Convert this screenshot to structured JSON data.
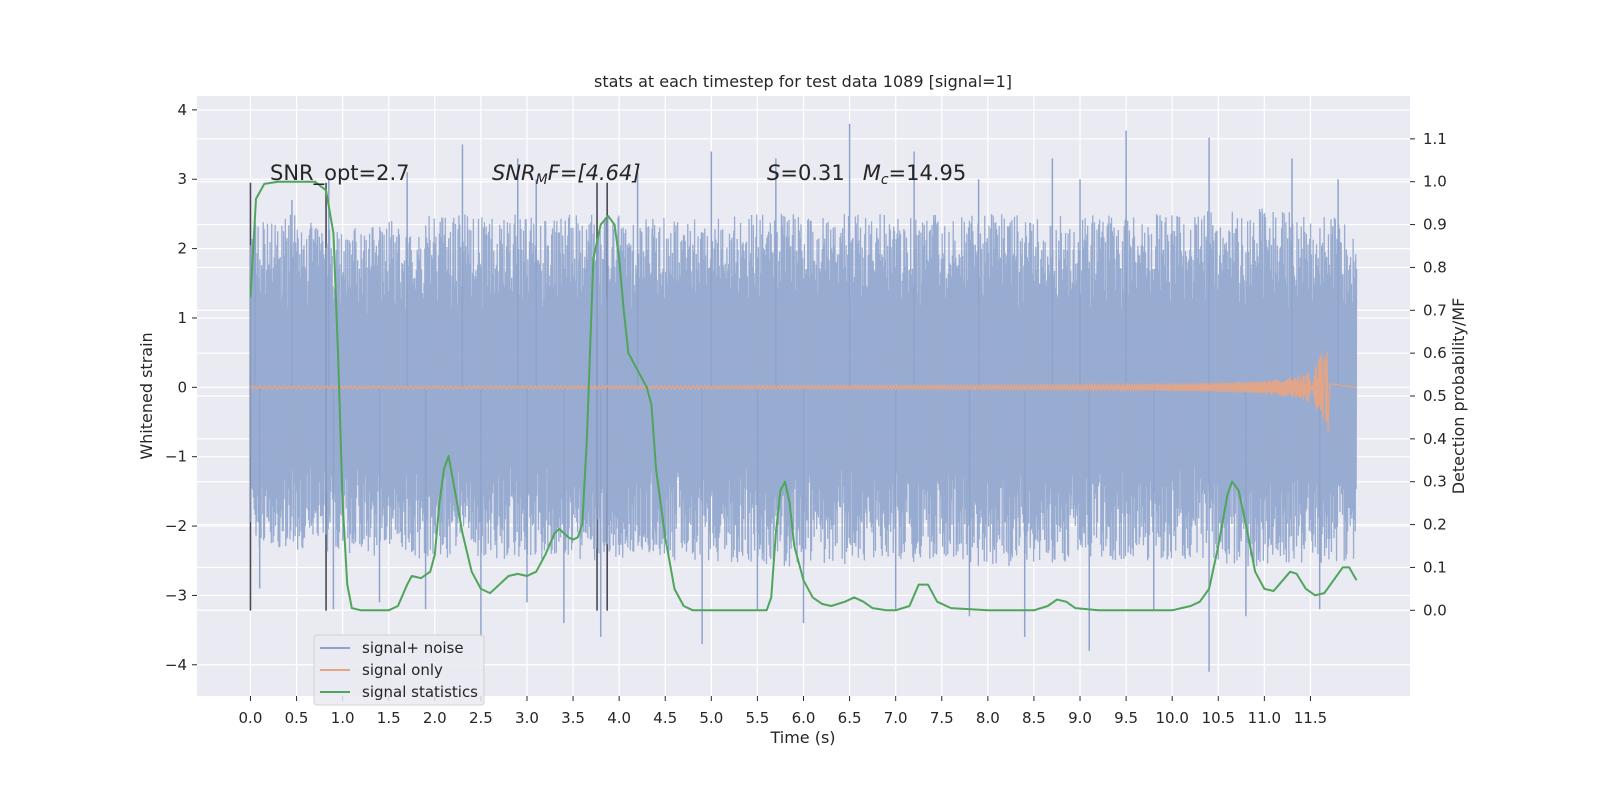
{
  "chart_data": {
    "type": "line",
    "title": "stats at each timestep for test data 1089 [signal=1]",
    "xlabel": "Time (s)",
    "ylabel": "Whitened strain",
    "y2label": "Detection probability/MF",
    "xlim": [
      -0.58,
      12.58
    ],
    "ylim": [
      -4.45,
      4.2
    ],
    "y2lim": [
      -0.2,
      1.2
    ],
    "grid": true,
    "legend": "lower-left",
    "x_ticks": [
      "0.0",
      "0.5",
      "1.0",
      "1.5",
      "2.0",
      "2.5",
      "3.0",
      "3.5",
      "4.0",
      "4.5",
      "5.0",
      "5.5",
      "6.0",
      "6.5",
      "7.0",
      "7.5",
      "8.0",
      "8.5",
      "9.0",
      "9.5",
      "10.0",
      "10.5",
      "11.0",
      "11.5"
    ],
    "y_ticks": [
      "−4",
      "−3",
      "−2",
      "−1",
      "0",
      "1",
      "2",
      "3",
      "4"
    ],
    "y2_ticks": [
      "0.0",
      "0.1",
      "0.2",
      "0.3",
      "0.4",
      "0.5",
      "0.6",
      "0.7",
      "0.8",
      "0.9",
      "1.0",
      "1.1"
    ],
    "annotations": {
      "snr_opt": "SNR_opt=2.7",
      "snr_mf_main": "SNR",
      "snr_mf_sub": "M",
      "snr_mf_rest": "F=[4.64]",
      "s_var": "S",
      "s_val": "=0.31",
      "mc_var": "M",
      "mc_sub": "c",
      "mc_val": "=14.95"
    },
    "vlines": [
      0.0,
      0.82,
      3.76,
      3.87
    ],
    "vline_range": [
      -3.22,
      2.95
    ],
    "series": [
      {
        "name": "signal+ noise",
        "color": "#8fa4cc",
        "t_range": [
          0.0,
          12.0
        ],
        "envelope_upper": [
          [
            0,
            2.4
          ],
          [
            0.5,
            2.5
          ],
          [
            1,
            2.3
          ],
          [
            2,
            2.5
          ],
          [
            3,
            2.5
          ],
          [
            4,
            2.5
          ],
          [
            5,
            2.5
          ],
          [
            6,
            2.5
          ],
          [
            7,
            2.5
          ],
          [
            8,
            2.5
          ],
          [
            9,
            2.5
          ],
          [
            10,
            2.5
          ],
          [
            11,
            2.6
          ],
          [
            12,
            2.4
          ]
        ],
        "envelope_lower": [
          [
            0,
            -2.3
          ],
          [
            1,
            -2.4
          ],
          [
            2,
            -2.5
          ],
          [
            3,
            -2.5
          ],
          [
            4,
            -2.5
          ],
          [
            5,
            -2.5
          ],
          [
            6,
            -2.6
          ],
          [
            7,
            -2.5
          ],
          [
            8,
            -2.6
          ],
          [
            9,
            -2.5
          ],
          [
            10,
            -2.5
          ],
          [
            11,
            -2.6
          ],
          [
            12,
            -2.5
          ]
        ],
        "spikes_high": [
          [
            0.05,
            2.4
          ],
          [
            0.45,
            2.7
          ],
          [
            0.85,
            3.0
          ],
          [
            1.7,
            3.1
          ],
          [
            2.3,
            3.5
          ],
          [
            2.9,
            3.3
          ],
          [
            3.1,
            3.0
          ],
          [
            4.2,
            3.1
          ],
          [
            5.0,
            3.4
          ],
          [
            5.7,
            3.3
          ],
          [
            6.5,
            3.8
          ],
          [
            7.2,
            3.4
          ],
          [
            7.9,
            3.0
          ],
          [
            8.7,
            3.3
          ],
          [
            9.0,
            3.0
          ],
          [
            9.5,
            3.7
          ],
          [
            10.4,
            3.6
          ],
          [
            11.3,
            3.3
          ],
          [
            11.8,
            3.0
          ]
        ],
        "spikes_low": [
          [
            0.1,
            -2.9
          ],
          [
            0.9,
            -3.2
          ],
          [
            1.4,
            -3.1
          ],
          [
            1.9,
            -3.2
          ],
          [
            2.5,
            -3.6
          ],
          [
            3.0,
            -3.1
          ],
          [
            3.4,
            -3.4
          ],
          [
            3.8,
            -3.6
          ],
          [
            4.9,
            -3.7
          ],
          [
            5.5,
            -3.2
          ],
          [
            6.0,
            -3.4
          ],
          [
            7.0,
            -3.2
          ],
          [
            7.8,
            -3.3
          ],
          [
            8.4,
            -3.6
          ],
          [
            9.1,
            -3.8
          ],
          [
            9.8,
            -3.2
          ],
          [
            10.4,
            -4.1
          ],
          [
            10.8,
            -3.3
          ],
          [
            11.6,
            -3.2
          ]
        ]
      },
      {
        "name": "signal only",
        "color": "#e5a585",
        "t_range": [
          0.0,
          12.0
        ],
        "amplitude_start": 0.01,
        "merger_time": 11.68,
        "merger_peak": 0.52,
        "merger_trough": -0.66
      },
      {
        "name": "signal statistics",
        "color": "#4fa55b",
        "points": [
          [
            0.0,
            0.73
          ],
          [
            0.06,
            0.96
          ],
          [
            0.15,
            0.995
          ],
          [
            0.3,
            1.0
          ],
          [
            0.5,
            1.0
          ],
          [
            0.7,
            1.0
          ],
          [
            0.82,
            0.98
          ],
          [
            0.9,
            0.88
          ],
          [
            0.95,
            0.6
          ],
          [
            1.0,
            0.25
          ],
          [
            1.05,
            0.06
          ],
          [
            1.1,
            0.005
          ],
          [
            1.2,
            0.0
          ],
          [
            1.5,
            0.0
          ],
          [
            1.6,
            0.01
          ],
          [
            1.7,
            0.06
          ],
          [
            1.75,
            0.08
          ],
          [
            1.85,
            0.075
          ],
          [
            1.95,
            0.09
          ],
          [
            2.0,
            0.13
          ],
          [
            2.05,
            0.25
          ],
          [
            2.1,
            0.33
          ],
          [
            2.15,
            0.36
          ],
          [
            2.2,
            0.3
          ],
          [
            2.3,
            0.18
          ],
          [
            2.4,
            0.09
          ],
          [
            2.5,
            0.05
          ],
          [
            2.6,
            0.04
          ],
          [
            2.7,
            0.06
          ],
          [
            2.8,
            0.08
          ],
          [
            2.9,
            0.085
          ],
          [
            3.0,
            0.08
          ],
          [
            3.1,
            0.09
          ],
          [
            3.2,
            0.13
          ],
          [
            3.3,
            0.18
          ],
          [
            3.35,
            0.19
          ],
          [
            3.45,
            0.17
          ],
          [
            3.5,
            0.165
          ],
          [
            3.55,
            0.17
          ],
          [
            3.6,
            0.2
          ],
          [
            3.65,
            0.4
          ],
          [
            3.72,
            0.82
          ],
          [
            3.8,
            0.9
          ],
          [
            3.88,
            0.92
          ],
          [
            3.95,
            0.9
          ],
          [
            4.0,
            0.82
          ],
          [
            4.05,
            0.7
          ],
          [
            4.1,
            0.6
          ],
          [
            4.15,
            0.58
          ],
          [
            4.2,
            0.56
          ],
          [
            4.3,
            0.52
          ],
          [
            4.35,
            0.48
          ],
          [
            4.4,
            0.33
          ],
          [
            4.5,
            0.17
          ],
          [
            4.6,
            0.05
          ],
          [
            4.7,
            0.01
          ],
          [
            4.8,
            0.0
          ],
          [
            5.0,
            0.0
          ],
          [
            5.6,
            0.0
          ],
          [
            5.65,
            0.03
          ],
          [
            5.7,
            0.18
          ],
          [
            5.75,
            0.28
          ],
          [
            5.8,
            0.3
          ],
          [
            5.85,
            0.25
          ],
          [
            5.9,
            0.15
          ],
          [
            6.0,
            0.07
          ],
          [
            6.1,
            0.03
          ],
          [
            6.2,
            0.015
          ],
          [
            6.3,
            0.01
          ],
          [
            6.45,
            0.02
          ],
          [
            6.55,
            0.03
          ],
          [
            6.65,
            0.02
          ],
          [
            6.75,
            0.005
          ],
          [
            6.9,
            0.0
          ],
          [
            7.0,
            0.0
          ],
          [
            7.15,
            0.01
          ],
          [
            7.25,
            0.06
          ],
          [
            7.35,
            0.06
          ],
          [
            7.45,
            0.02
          ],
          [
            7.6,
            0.005
          ],
          [
            8.0,
            0.0
          ],
          [
            8.5,
            0.0
          ],
          [
            8.65,
            0.01
          ],
          [
            8.75,
            0.025
          ],
          [
            8.85,
            0.02
          ],
          [
            8.95,
            0.005
          ],
          [
            9.2,
            0.0
          ],
          [
            9.5,
            0.0
          ],
          [
            9.9,
            0.0
          ],
          [
            10.0,
            0.0
          ],
          [
            10.1,
            0.005
          ],
          [
            10.2,
            0.01
          ],
          [
            10.3,
            0.02
          ],
          [
            10.4,
            0.05
          ],
          [
            10.5,
            0.15
          ],
          [
            10.6,
            0.27
          ],
          [
            10.65,
            0.3
          ],
          [
            10.72,
            0.28
          ],
          [
            10.8,
            0.2
          ],
          [
            10.9,
            0.09
          ],
          [
            11.0,
            0.05
          ],
          [
            11.1,
            0.045
          ],
          [
            11.2,
            0.07
          ],
          [
            11.28,
            0.09
          ],
          [
            11.35,
            0.085
          ],
          [
            11.45,
            0.05
          ],
          [
            11.55,
            0.035
          ],
          [
            11.65,
            0.04
          ],
          [
            11.75,
            0.07
          ],
          [
            11.85,
            0.1
          ],
          [
            11.92,
            0.1
          ],
          [
            12.0,
            0.07
          ]
        ]
      }
    ]
  }
}
